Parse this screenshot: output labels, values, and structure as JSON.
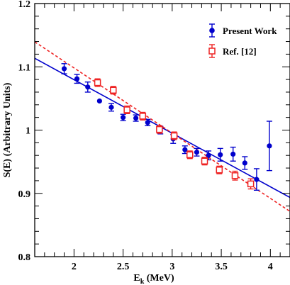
{
  "chart_data": {
    "type": "scatter",
    "title": "",
    "xlabel": {
      "main": "E",
      "sub": "k",
      "rest": " (MeV)"
    },
    "ylabel": "S(E)  (Arbitrary Units)",
    "xlim": [
      1.6,
      4.2
    ],
    "ylim": [
      0.8,
      1.2
    ],
    "x_ticks": [
      2,
      2.5,
      3,
      3.5,
      4
    ],
    "x_tick_labels": [
      "2",
      "2.5",
      "3",
      "3.5",
      "4"
    ],
    "y_ticks": [
      0.8,
      0.9,
      1.0,
      1.1,
      1.2
    ],
    "y_tick_labels": [
      "0.8",
      "0.9",
      "1",
      "1.1",
      "1.2"
    ],
    "legend_position": "top-right",
    "series": [
      {
        "name": "Present Work",
        "marker": "filled-circle",
        "color": "#0000cc",
        "points": [
          {
            "x": 1.9,
            "y": 1.097,
            "err": 0.008
          },
          {
            "x": 2.03,
            "y": 1.081,
            "err": 0.007
          },
          {
            "x": 2.14,
            "y": 1.068,
            "err": 0.008
          },
          {
            "x": 2.26,
            "y": 1.046,
            "err": 0.0
          },
          {
            "x": 2.38,
            "y": 1.036,
            "err": 0.006
          },
          {
            "x": 2.5,
            "y": 1.02,
            "err": 0.005
          },
          {
            "x": 2.63,
            "y": 1.019,
            "err": 0.005
          },
          {
            "x": 2.75,
            "y": 1.012,
            "err": 0.005
          },
          {
            "x": 2.88,
            "y": 1.0,
            "err": 0.006
          },
          {
            "x": 3.01,
            "y": 0.986,
            "err": 0.007
          },
          {
            "x": 3.13,
            "y": 0.969,
            "err": 0.006
          },
          {
            "x": 3.25,
            "y": 0.965,
            "err": 0.006
          },
          {
            "x": 3.37,
            "y": 0.96,
            "err": 0.007
          },
          {
            "x": 3.49,
            "y": 0.961,
            "err": 0.01
          },
          {
            "x": 3.62,
            "y": 0.962,
            "err": 0.011
          },
          {
            "x": 3.74,
            "y": 0.948,
            "err": 0.01
          },
          {
            "x": 3.86,
            "y": 0.922,
            "err": 0.017
          },
          {
            "x": 3.99,
            "y": 0.975,
            "err": 0.039
          }
        ]
      },
      {
        "name": "Ref. [12]",
        "marker": "open-square",
        "color": "#ee2222",
        "points": [
          {
            "x": 2.24,
            "y": 1.075,
            "err": 0.006
          },
          {
            "x": 2.4,
            "y": 1.063,
            "err": 0.006
          },
          {
            "x": 2.54,
            "y": 1.032,
            "err": 0.006
          },
          {
            "x": 2.7,
            "y": 1.022,
            "err": 0.006
          },
          {
            "x": 2.87,
            "y": 1.001,
            "err": 0.006
          },
          {
            "x": 3.02,
            "y": 0.991,
            "err": 0.006
          },
          {
            "x": 3.18,
            "y": 0.961,
            "err": 0.006
          },
          {
            "x": 3.33,
            "y": 0.951,
            "err": 0.006
          },
          {
            "x": 3.48,
            "y": 0.937,
            "err": 0.006
          },
          {
            "x": 3.64,
            "y": 0.928,
            "err": 0.007
          },
          {
            "x": 3.8,
            "y": 0.915,
            "err": 0.008
          }
        ]
      }
    ],
    "fit_lines": [
      {
        "series": "Present Work",
        "style": "solid",
        "color": "#0000cc",
        "x": [
          1.6,
          4.2
        ],
        "y": [
          1.1135,
          0.8935
        ]
      },
      {
        "series": "Ref. [12]",
        "style": "dashed",
        "color": "#ee2222",
        "x": [
          1.6,
          4.2
        ],
        "y": [
          1.1395,
          0.8715
        ]
      }
    ]
  }
}
